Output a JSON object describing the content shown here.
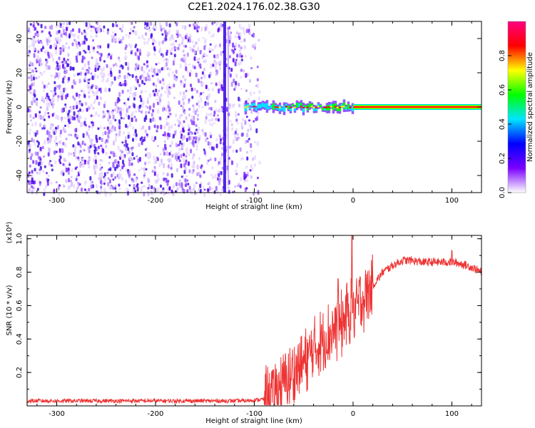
{
  "figure": {
    "title": "C2E1.2024.176.02.38.G30"
  },
  "chart_data": [
    {
      "type": "heatmap",
      "xlabel": "Height of straight line (km)",
      "ylabel": "Frequency (Hz)",
      "xlim": [
        -330,
        130
      ],
      "ylim": [
        -50,
        50
      ],
      "xticks": [
        -300,
        -200,
        -100,
        0,
        100
      ],
      "yticks": [
        -40,
        -20,
        0,
        20,
        40
      ],
      "xtick_labels": [
        "-300",
        "-200",
        "-100",
        "0",
        "100"
      ],
      "ytick_labels": [
        "-40",
        "-20",
        "0",
        "20",
        "40"
      ],
      "grid": false,
      "colorbar": {
        "label": "Normalized spectral amplitude",
        "range": [
          0,
          1
        ],
        "ticks": [
          0.0,
          0.2,
          0.4,
          0.6,
          0.8
        ],
        "tick_labels": [
          "0.0",
          "0.2",
          "0.4",
          "0.6",
          "0.8"
        ],
        "colors": [
          "#ffffff",
          "#7a00ff",
          "#0000ff",
          "#00e5ff",
          "#00ff00",
          "#ffff00",
          "#ff0000",
          "#ff0080"
        ]
      },
      "features": [
        {
          "name": "diffuse noise",
          "x_range": [
            -330,
            -95
          ],
          "freq_range": [
            -50,
            50
          ],
          "amplitude": 0.15
        },
        {
          "name": "vertical streak",
          "x": -130,
          "freq_range": [
            -50,
            50
          ],
          "amplitude": 0.3
        },
        {
          "name": "signal band",
          "x_range": [
            -110,
            130
          ],
          "center_freq": 0,
          "amplitude": 0.95
        }
      ]
    },
    {
      "type": "line",
      "xlabel": "Height of straight line (km)",
      "ylabel": "SNR (10 * v/v)",
      "y_multiplier": "(x10⁴)",
      "xlim": [
        -330,
        130
      ],
      "ylim": [
        0,
        1.02
      ],
      "xticks": [
        -300,
        -200,
        -100,
        0,
        100
      ],
      "yticks": [
        0.2,
        0.4,
        0.6,
        0.8,
        1.0
      ],
      "xtick_labels": [
        "-300",
        "-200",
        "-100",
        "0",
        "100"
      ],
      "ytick_labels": [
        "0.2",
        "0.4",
        "0.6",
        "0.8",
        "1.0"
      ],
      "grid": false,
      "color": "#ee3333",
      "series": [
        {
          "x": [
            -330,
            -300,
            -250,
            -200,
            -150,
            -110,
            -90,
            -80,
            -70,
            -60,
            -50,
            -40,
            -30,
            -20,
            -10,
            -5,
            0,
            5,
            10,
            20,
            30,
            40,
            50,
            60,
            70,
            80,
            90,
            100,
            110,
            120,
            130
          ],
          "y": [
            0.03,
            0.03,
            0.03,
            0.03,
            0.03,
            0.03,
            0.04,
            0.08,
            0.14,
            0.2,
            0.26,
            0.33,
            0.4,
            0.45,
            0.5,
            0.55,
            0.55,
            0.6,
            0.64,
            0.72,
            0.8,
            0.84,
            0.87,
            0.87,
            0.86,
            0.86,
            0.86,
            0.86,
            0.85,
            0.83,
            0.8
          ]
        }
      ],
      "peaks": [
        {
          "x": -1,
          "y": 1.02
        },
        {
          "x": -15,
          "y": 0.76
        },
        {
          "x": 100,
          "y": 0.93
        }
      ]
    }
  ]
}
